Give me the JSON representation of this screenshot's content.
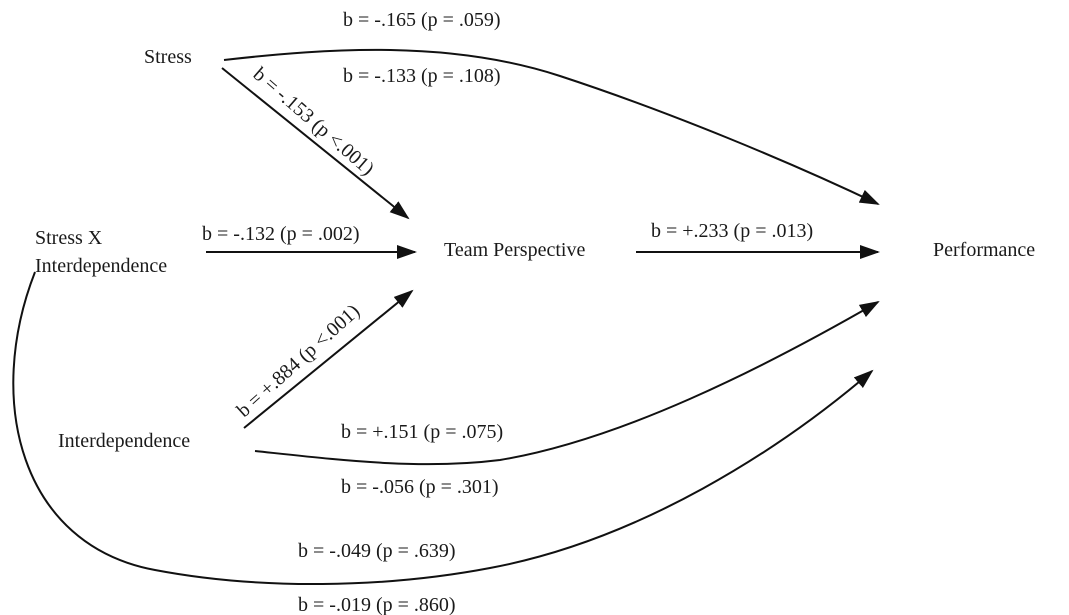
{
  "nodes": {
    "stress": "Stress",
    "stress_x_interdependence_line1": "Stress X",
    "stress_x_interdependence_line2": "Interdependence",
    "interdependence": "Interdependence",
    "team_perspective": "Team Perspective",
    "performance": "Performance"
  },
  "edges": {
    "stress_to_performance_total": "b = -.165 (p = .059)",
    "stress_to_performance_direct": "b = -.133 (p = .108)",
    "stress_to_team_perspective": "b = -.153 (p <.001)",
    "stress_x_interdependence_to_team_perspective": "b = -.132 (p = .002)",
    "interdependence_to_team_perspective": "b = +.884 (p <.001)",
    "team_perspective_to_performance": "b = +.233 (p = .013)",
    "interdependence_to_performance_total": "b = +.151 (p = .075)",
    "interdependence_to_performance_direct": "b = -.056 (p = .301)",
    "stress_x_interdependence_to_performance_total": "b = -.049 (p = .639)",
    "stress_x_interdependence_to_performance_direct": "b = -.019 (p = .860)"
  }
}
